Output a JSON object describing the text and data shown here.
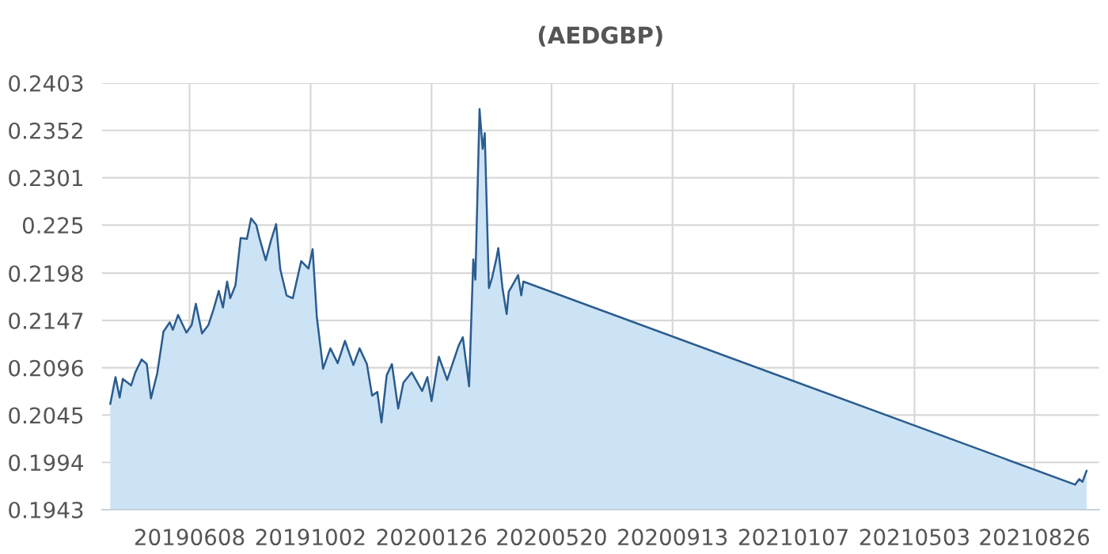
{
  "chart_data": {
    "type": "area",
    "title": "(AEDGBP)",
    "x": [
      "2019-03-24",
      "2019-03-29",
      "2019-04-02",
      "2019-04-05",
      "2019-04-13",
      "2019-04-17",
      "2019-04-23",
      "2019-04-28",
      "2019-05-02",
      "2019-05-08",
      "2019-05-14",
      "2019-05-20",
      "2019-05-23",
      "2019-05-28",
      "2019-06-05",
      "2019-06-10",
      "2019-06-14",
      "2019-06-20",
      "2019-06-26",
      "2019-07-01",
      "2019-07-06",
      "2019-07-10",
      "2019-07-14",
      "2019-07-17",
      "2019-07-22",
      "2019-07-27",
      "2019-08-02",
      "2019-08-06",
      "2019-08-11",
      "2019-08-14",
      "2019-08-20",
      "2019-08-25",
      "2019-08-30",
      "2019-09-03",
      "2019-09-09",
      "2019-09-15",
      "2019-09-23",
      "2019-09-30",
      "2019-10-04",
      "2019-10-08",
      "2019-10-14",
      "2019-10-21",
      "2019-10-28",
      "2019-11-04",
      "2019-11-12",
      "2019-11-18",
      "2019-11-25",
      "2019-11-30",
      "2019-12-05",
      "2019-12-09",
      "2019-12-14",
      "2019-12-19",
      "2019-12-25",
      "2019-12-30",
      "2020-01-07",
      "2020-01-17",
      "2020-01-22",
      "2020-01-26",
      "2020-02-02",
      "2020-02-10",
      "2020-02-15",
      "2020-02-21",
      "2020-02-25",
      "2020-03-02",
      "2020-03-06",
      "2020-03-08",
      "2020-03-12",
      "2020-03-15",
      "2020-03-17",
      "2020-03-21",
      "2020-03-24",
      "2020-03-28",
      "2020-03-30",
      "2020-04-03",
      "2020-04-07",
      "2020-04-09",
      "2020-04-18",
      "2020-04-21",
      "2020-04-23",
      "2021-10-04",
      "2021-10-08",
      "2021-10-11",
      "2021-10-15"
    ],
    "series": [
      {
        "color": "#2a5c8f",
        "values": [
          0.2057,
          0.2086,
          0.2064,
          0.2084,
          0.2077,
          0.2091,
          0.2105,
          0.21,
          0.2063,
          0.209,
          0.2135,
          0.2145,
          0.2137,
          0.2153,
          0.2134,
          0.2142,
          0.2165,
          0.2133,
          0.2142,
          0.2159,
          0.2179,
          0.2161,
          0.2189,
          0.2171,
          0.2185,
          0.2236,
          0.2235,
          0.2257,
          0.225,
          0.2236,
          0.2212,
          0.2233,
          0.2251,
          0.2202,
          0.2174,
          0.2171,
          0.2211,
          0.2203,
          0.2224,
          0.2151,
          0.2095,
          0.2117,
          0.2101,
          0.2125,
          0.2099,
          0.2117,
          0.21,
          0.2066,
          0.207,
          0.2037,
          0.2088,
          0.21,
          0.2052,
          0.208,
          0.2091,
          0.2071,
          0.2086,
          0.206,
          0.2108,
          0.2083,
          0.21,
          0.212,
          0.2129,
          0.2076,
          0.2213,
          0.2191,
          0.2375,
          0.2332,
          0.2349,
          0.2182,
          0.2193,
          0.2213,
          0.2225,
          0.2182,
          0.2154,
          0.2178,
          0.2196,
          0.2174,
          0.2189,
          0.197,
          0.1976,
          0.1973,
          0.1985
        ]
      }
    ],
    "xlim": [
      "2019-03-16",
      "2021-10-27"
    ],
    "xticks": [
      {
        "value": "2019-06-08",
        "label": "20190608"
      },
      {
        "value": "2019-10-02",
        "label": "20191002"
      },
      {
        "value": "2020-01-26",
        "label": "20200126"
      },
      {
        "value": "2020-05-20",
        "label": "20200520"
      },
      {
        "value": "2020-09-13",
        "label": "20200913"
      },
      {
        "value": "2021-01-07",
        "label": "20210107"
      },
      {
        "value": "2021-05-03",
        "label": "20210503"
      },
      {
        "value": "2021-08-26",
        "label": "20210826"
      }
    ],
    "ylim": [
      0.1943,
      0.2403
    ],
    "yticks": [
      0.1943,
      0.1994,
      0.2045,
      0.2096,
      0.2147,
      0.2198,
      0.225,
      0.2301,
      0.2352,
      0.2403
    ],
    "grid": true
  }
}
